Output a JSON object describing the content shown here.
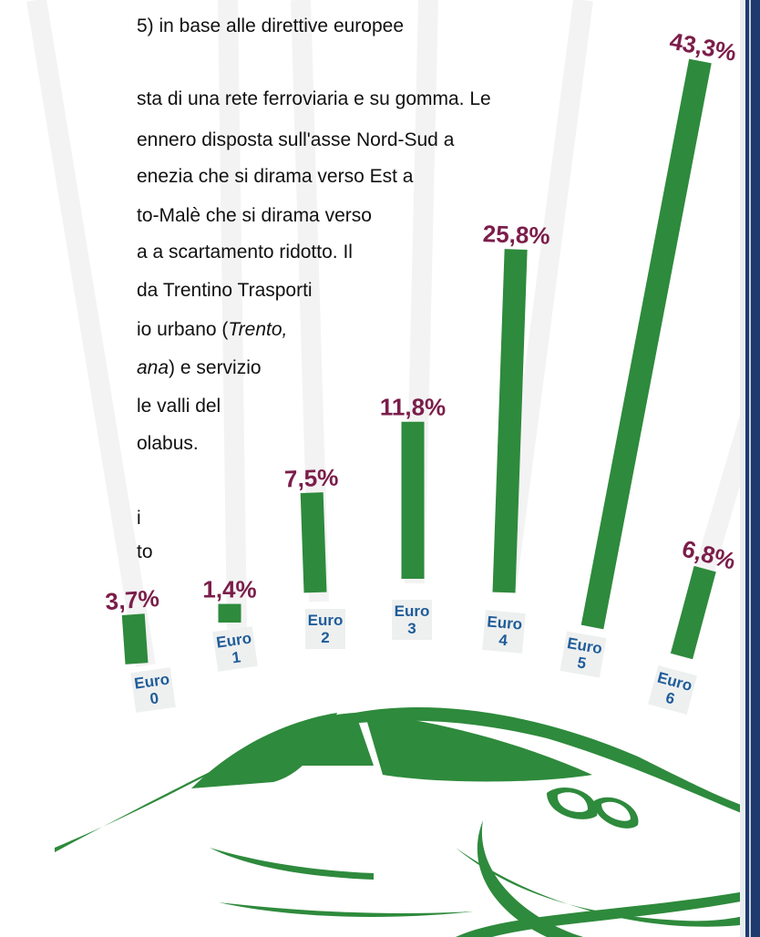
{
  "article": {
    "lines": [
      [
        "5) in base alle direttive europee"
      ],
      [
        "sta di una rete ferroviaria e su gomma. Le"
      ],
      [
        "ennero disposta sull'asse Nord-Sud a"
      ],
      [
        "enezia che si dirama verso Est a"
      ],
      [
        "to-Malè che si dirama verso"
      ],
      [
        "a a scartamento ridotto. Il"
      ],
      [
        "da Trentino Trasporti"
      ],
      [
        "io urbano (",
        "Trento,"
      ],
      [
        "",
        "ana",
        ") e servizio"
      ],
      [
        "le valli del"
      ],
      [
        "olabus."
      ],
      [
        "i"
      ],
      [
        "to"
      ]
    ]
  },
  "chart_data": {
    "type": "bar",
    "categories": [
      "Euro\n0",
      "Euro\n1",
      "Euro\n2",
      "Euro\n3",
      "Euro\n4",
      "Euro\n5",
      "Euro\n6"
    ],
    "values": [
      3.7,
      1.4,
      7.5,
      11.8,
      25.8,
      43.3,
      6.8
    ],
    "value_labels": [
      "3,7%",
      "1,4%",
      "7,5%",
      "11,8%",
      "25,8%",
      "43,3%",
      "6,8%"
    ],
    "color": "#2e8a3c",
    "label_color": "#7b1d4a",
    "category_color": "#1f5c99"
  }
}
